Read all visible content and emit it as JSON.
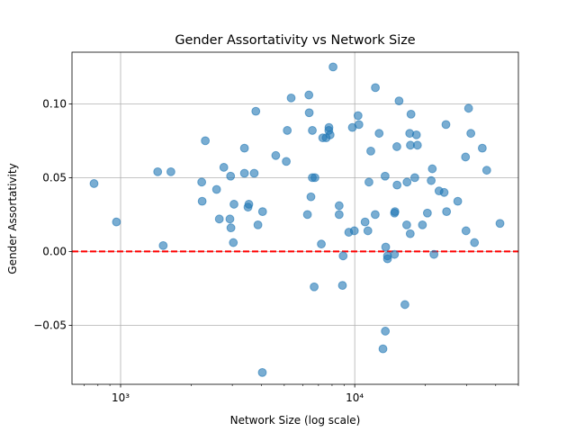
{
  "chart_data": {
    "type": "scatter",
    "title": "Gender Assortativity vs Network Size",
    "xlabel": "Network Size (log scale)",
    "ylabel": "Gender Assortativity",
    "xscale": "log",
    "xlim": [
      620,
      50000
    ],
    "ylim": [
      -0.09,
      0.135
    ],
    "x_major_ticks": [
      1000,
      10000
    ],
    "x_tick_labels": [
      "10³",
      "10⁴"
    ],
    "y_ticks": [
      -0.05,
      0.0,
      0.05,
      0.1
    ],
    "y_tick_labels": [
      "−0.05",
      "0.00",
      "0.05",
      "0.10"
    ],
    "grid": true,
    "reference_line": {
      "y": 0.0,
      "color": "#ff0000",
      "style": "dashed"
    },
    "marker_color": "#1f77b4",
    "marker_alpha": 0.6,
    "points": [
      {
        "x": 770,
        "y": 0.046
      },
      {
        "x": 960,
        "y": 0.02
      },
      {
        "x": 1440,
        "y": 0.054
      },
      {
        "x": 1520,
        "y": 0.004
      },
      {
        "x": 1640,
        "y": 0.054
      },
      {
        "x": 2220,
        "y": 0.047
      },
      {
        "x": 2230,
        "y": 0.034
      },
      {
        "x": 2300,
        "y": 0.075
      },
      {
        "x": 2570,
        "y": 0.042
      },
      {
        "x": 2640,
        "y": 0.022
      },
      {
        "x": 2760,
        "y": 0.057
      },
      {
        "x": 2930,
        "y": 0.022
      },
      {
        "x": 2950,
        "y": 0.051
      },
      {
        "x": 3030,
        "y": 0.006
      },
      {
        "x": 3050,
        "y": 0.032
      },
      {
        "x": 2960,
        "y": 0.016
      },
      {
        "x": 3380,
        "y": 0.07
      },
      {
        "x": 3380,
        "y": 0.053
      },
      {
        "x": 3500,
        "y": 0.03
      },
      {
        "x": 3530,
        "y": 0.032
      },
      {
        "x": 3720,
        "y": 0.053
      },
      {
        "x": 3780,
        "y": 0.095
      },
      {
        "x": 3860,
        "y": 0.018
      },
      {
        "x": 4040,
        "y": 0.027
      },
      {
        "x": 4030,
        "y": -0.082
      },
      {
        "x": 4600,
        "y": 0.065
      },
      {
        "x": 5100,
        "y": 0.061
      },
      {
        "x": 5150,
        "y": 0.082
      },
      {
        "x": 5350,
        "y": 0.104
      },
      {
        "x": 6280,
        "y": 0.025
      },
      {
        "x": 6370,
        "y": 0.106
      },
      {
        "x": 6390,
        "y": 0.094
      },
      {
        "x": 6500,
        "y": 0.037
      },
      {
        "x": 6590,
        "y": 0.082
      },
      {
        "x": 6590,
        "y": 0.05
      },
      {
        "x": 6760,
        "y": 0.05
      },
      {
        "x": 6710,
        "y": -0.024
      },
      {
        "x": 7200,
        "y": 0.005
      },
      {
        "x": 7300,
        "y": 0.077
      },
      {
        "x": 7550,
        "y": 0.077
      },
      {
        "x": 7750,
        "y": 0.082
      },
      {
        "x": 7760,
        "y": 0.084
      },
      {
        "x": 7850,
        "y": 0.079
      },
      {
        "x": 8080,
        "y": 0.125
      },
      {
        "x": 8580,
        "y": 0.025
      },
      {
        "x": 8580,
        "y": 0.031
      },
      {
        "x": 8920,
        "y": -0.003
      },
      {
        "x": 8860,
        "y": -0.023
      },
      {
        "x": 9430,
        "y": 0.013
      },
      {
        "x": 9770,
        "y": 0.084
      },
      {
        "x": 9960,
        "y": 0.014
      },
      {
        "x": 10330,
        "y": 0.092
      },
      {
        "x": 10420,
        "y": 0.086
      },
      {
        "x": 11070,
        "y": 0.02
      },
      {
        "x": 11380,
        "y": 0.014
      },
      {
        "x": 11500,
        "y": 0.047
      },
      {
        "x": 11710,
        "y": 0.068
      },
      {
        "x": 12250,
        "y": 0.111
      },
      {
        "x": 12230,
        "y": 0.025
      },
      {
        "x": 12710,
        "y": 0.08
      },
      {
        "x": 13200,
        "y": -0.066
      },
      {
        "x": 13480,
        "y": 0.051
      },
      {
        "x": 13560,
        "y": 0.003
      },
      {
        "x": 13510,
        "y": -0.054
      },
      {
        "x": 13800,
        "y": -0.005
      },
      {
        "x": 13800,
        "y": -0.003
      },
      {
        "x": 14790,
        "y": 0.026
      },
      {
        "x": 14850,
        "y": 0.027
      },
      {
        "x": 14780,
        "y": -0.002
      },
      {
        "x": 15130,
        "y": 0.071
      },
      {
        "x": 15160,
        "y": 0.045
      },
      {
        "x": 15460,
        "y": 0.102
      },
      {
        "x": 16380,
        "y": -0.036
      },
      {
        "x": 16670,
        "y": 0.018
      },
      {
        "x": 16720,
        "y": 0.047
      },
      {
        "x": 17170,
        "y": 0.08
      },
      {
        "x": 17290,
        "y": 0.072
      },
      {
        "x": 17390,
        "y": 0.093
      },
      {
        "x": 17260,
        "y": 0.012
      },
      {
        "x": 18050,
        "y": 0.05
      },
      {
        "x": 18340,
        "y": 0.079
      },
      {
        "x": 18520,
        "y": 0.072
      },
      {
        "x": 19460,
        "y": 0.018
      },
      {
        "x": 20430,
        "y": 0.026
      },
      {
        "x": 21210,
        "y": 0.048
      },
      {
        "x": 21440,
        "y": 0.056
      },
      {
        "x": 21790,
        "y": -0.002
      },
      {
        "x": 22910,
        "y": 0.041
      },
      {
        "x": 24090,
        "y": 0.04
      },
      {
        "x": 24520,
        "y": 0.086
      },
      {
        "x": 24670,
        "y": 0.027
      },
      {
        "x": 27540,
        "y": 0.034
      },
      {
        "x": 29730,
        "y": 0.064
      },
      {
        "x": 29870,
        "y": 0.014
      },
      {
        "x": 30640,
        "y": 0.097
      },
      {
        "x": 31320,
        "y": 0.08
      },
      {
        "x": 32470,
        "y": 0.006
      },
      {
        "x": 35060,
        "y": 0.07
      },
      {
        "x": 36620,
        "y": 0.055
      },
      {
        "x": 41720,
        "y": 0.019
      }
    ]
  }
}
